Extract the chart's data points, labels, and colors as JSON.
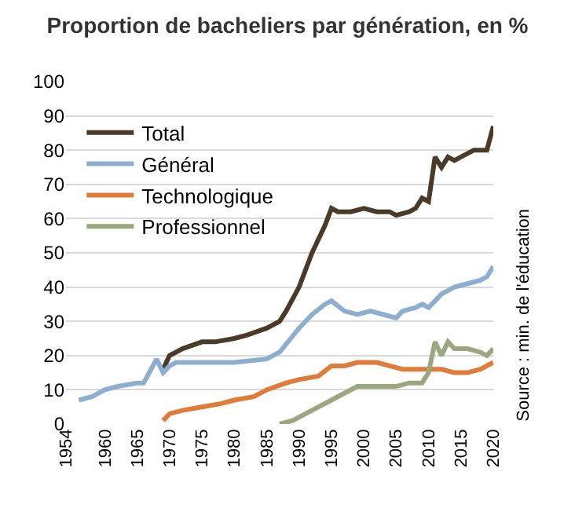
{
  "chart_data": {
    "type": "line",
    "title": "Proportion de bacheliers par génération, en %",
    "annotations": [
      "Source : min. de l'éducation"
    ],
    "xlim": [
      1954,
      2020
    ],
    "xticks": [
      1954,
      1960,
      1965,
      1970,
      1975,
      1980,
      1985,
      1990,
      1995,
      2000,
      2005,
      2010,
      2015,
      2020
    ],
    "ylim": [
      0,
      100
    ],
    "yticks": [
      0,
      10,
      20,
      30,
      40,
      50,
      60,
      70,
      80,
      90,
      100
    ],
    "grid": "y",
    "legend": "top left",
    "marker": "none",
    "line_style": "solid",
    "series": [
      {
        "name": "Total",
        "color": "#4a3a28",
        "x": [
          1969,
          1970,
          1972,
          1975,
          1977,
          1980,
          1982,
          1985,
          1987,
          1988,
          1990,
          1992,
          1994,
          1995,
          1996,
          1998,
          2000,
          2002,
          2004,
          2005,
          2007,
          2008,
          2009,
          2010,
          2011,
          2012,
          2013,
          2014,
          2015,
          2017,
          2019,
          2020
        ],
        "values": [
          16,
          20,
          22,
          24,
          24,
          25,
          26,
          28,
          30,
          33,
          40,
          50,
          58,
          63,
          62,
          62,
          63,
          62,
          62,
          61,
          62,
          63,
          66,
          65,
          78,
          75,
          78,
          77,
          78,
          80,
          80,
          87
        ]
      },
      {
        "name": "Général",
        "color": "#8eaed0",
        "x": [
          1956,
          1958,
          1960,
          1962,
          1965,
          1966,
          1968,
          1969,
          1970,
          1971,
          1975,
          1980,
          1985,
          1987,
          1990,
          1992,
          1994,
          1995,
          1997,
          1999,
          2001,
          2003,
          2005,
          2006,
          2008,
          2009,
          2010,
          2012,
          2014,
          2016,
          2018,
          2019,
          2020
        ],
        "values": [
          7,
          8,
          10,
          11,
          12,
          12,
          19,
          15,
          17,
          18,
          18,
          18,
          19,
          21,
          28,
          32,
          35,
          36,
          33,
          32,
          33,
          32,
          31,
          33,
          34,
          35,
          34,
          38,
          40,
          41,
          42,
          43,
          46
        ]
      },
      {
        "name": "Technologique",
        "color": "#e07b39",
        "x": [
          1969,
          1970,
          1972,
          1975,
          1978,
          1980,
          1983,
          1985,
          1988,
          1990,
          1993,
          1995,
          1997,
          1999,
          2000,
          2002,
          2004,
          2006,
          2008,
          2010,
          2012,
          2014,
          2016,
          2018,
          2020
        ],
        "values": [
          1,
          3,
          4,
          5,
          6,
          7,
          8,
          10,
          12,
          13,
          14,
          17,
          17,
          18,
          18,
          18,
          17,
          16,
          16,
          16,
          16,
          15,
          15,
          16,
          18
        ]
      },
      {
        "name": "Professionnel",
        "color": "#9aa77f",
        "x": [
          1987,
          1989,
          1991,
          1993,
          1995,
          1997,
          1999,
          2001,
          2003,
          2005,
          2007,
          2009,
          2010,
          2011,
          2012,
          2013,
          2014,
          2016,
          2018,
          2019,
          2020
        ],
        "values": [
          0,
          1,
          3,
          5,
          7,
          9,
          11,
          11,
          11,
          11,
          12,
          12,
          15,
          24,
          20,
          24,
          22,
          22,
          21,
          20,
          22
        ]
      }
    ]
  }
}
